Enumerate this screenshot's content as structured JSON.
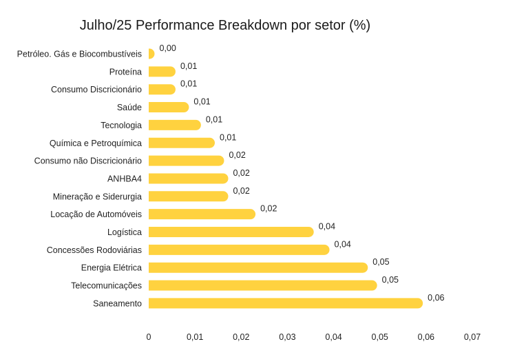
{
  "chart_data": {
    "type": "bar",
    "orientation": "horizontal",
    "title": "Julho/25 Performance Breakdown por setor (%)",
    "xlabel": "",
    "ylabel": "",
    "xlim": [
      0,
      0.07
    ],
    "grid": false,
    "legend": "none",
    "bar_color": "#FFD23F",
    "x_ticks": [
      0,
      0.01,
      0.02,
      0.03,
      0.04,
      0.05,
      0.06,
      0.07
    ],
    "x_tick_labels": [
      "0",
      "0,01",
      "0,02",
      "0,03",
      "0,04",
      "0,05",
      "0,06",
      "0,07"
    ],
    "categories": [
      "Petróleo. Gás e Biocombustíveis",
      "Proteína",
      "Consumo Discricionário",
      "Saúde",
      "Tecnologia",
      "Química e Petroquímica",
      "Consumo não Discricionário",
      "ANHBA4",
      "Mineração e Siderurgia",
      "Locação de Automóveis",
      "Logística",
      "Concessões Rodoviárias",
      "Energia Elétrica",
      "Telecomunicações",
      "Saneamento"
    ],
    "values": [
      0.0012,
      0.0058,
      0.0058,
      0.0087,
      0.0113,
      0.0143,
      0.0163,
      0.0172,
      0.0172,
      0.0231,
      0.0357,
      0.0391,
      0.0474,
      0.0494,
      0.0593
    ],
    "data_labels": [
      "0,00",
      "0,01",
      "0,01",
      "0,01",
      "0,01",
      "0,01",
      "0,02",
      "0,02",
      "0,02",
      "0,02",
      "0,04",
      "0,04",
      "0,05",
      "0,05",
      "0,06"
    ]
  }
}
